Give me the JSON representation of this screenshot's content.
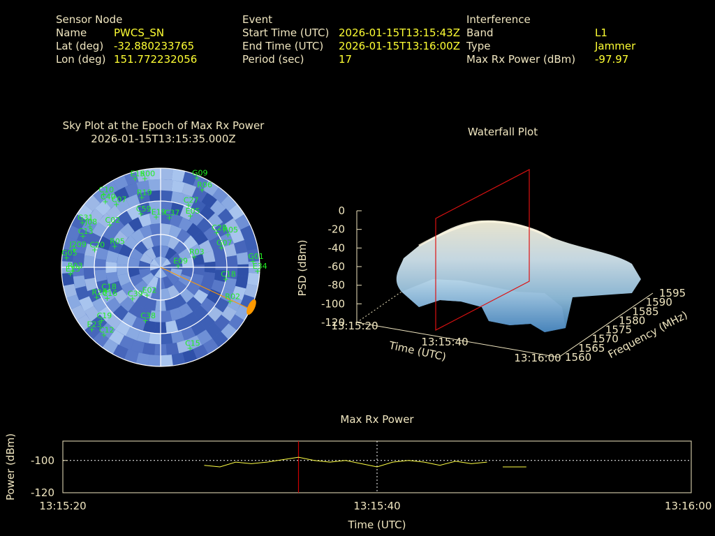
{
  "header": {
    "sensor": {
      "heading": "Sensor Node",
      "name_label": "Name",
      "name_value": "PWCS_SN",
      "lat_label": "Lat (deg)",
      "lat_value": "-32.880233765",
      "lon_label": "Lon (deg)",
      "lon_value": "151.772232056"
    },
    "event": {
      "heading": "Event",
      "start_label": "Start Time (UTC)",
      "start_value": "2026-01-15T13:15:43Z",
      "end_label": "End Time (UTC)",
      "end_value": "2026-01-15T13:16:00Z",
      "period_label": "Period (sec)",
      "period_value": "17"
    },
    "interference": {
      "heading": "Interference",
      "band_label": "Band",
      "band_value": "L1",
      "type_label": "Type",
      "type_value": "Jammer",
      "power_label": "Max Rx Power (dBm)",
      "power_value": "-97.97"
    }
  },
  "colors": {
    "label": "#f0e6c0",
    "value": "#ffff33",
    "satellite": "#22ee22",
    "marker": "#cc0000",
    "power_line": "#ffff44",
    "jammer": "#ff9900"
  },
  "chart_data": [
    {
      "type": "scatter",
      "title": "Sky Plot at the Epoch of Max Rx Power",
      "subtitle": "2026-01-15T13:15:35.000Z",
      "rings_elevation_deg": [
        0,
        30,
        60
      ],
      "jammer_azimuth_deg": 115,
      "satellites": [
        {
          "id": "G09",
          "az": 22,
          "el": 2
        },
        {
          "id": "R06",
          "az": 28,
          "el": 10
        },
        {
          "id": "E15",
          "az": 344,
          "el": 6
        },
        {
          "id": "R00",
          "az": 350,
          "el": 8
        },
        {
          "id": "C10",
          "az": 322,
          "el": 6
        },
        {
          "id": "C40",
          "az": 320,
          "el": 12
        },
        {
          "id": "C07",
          "az": 325,
          "el": 20
        },
        {
          "id": "R19",
          "az": 345,
          "el": 24
        },
        {
          "id": "C27",
          "az": 24,
          "el": 28
        },
        {
          "id": "E05",
          "az": 30,
          "el": 36
        },
        {
          "id": "G31",
          "az": 300,
          "el": 8
        },
        {
          "id": "J08",
          "az": 300,
          "el": 16
        },
        {
          "id": "C13",
          "az": 292,
          "el": 14
        },
        {
          "id": "C02",
          "az": 310,
          "el": 30
        },
        {
          "id": "C59",
          "az": 340,
          "el": 38
        },
        {
          "id": "E19",
          "az": 355,
          "el": 44
        },
        {
          "id": "C37",
          "az": 10,
          "el": 44
        },
        {
          "id": "J209",
          "az": 282,
          "el": 10
        },
        {
          "id": "C20",
          "az": 285,
          "el": 28
        },
        {
          "id": "R05",
          "az": 295,
          "el": 44
        },
        {
          "id": "G05",
          "az": 276,
          "el": 4
        },
        {
          "id": "R03",
          "az": 268,
          "el": 10
        },
        {
          "id": "E13",
          "az": 266,
          "el": 8
        },
        {
          "id": "C28",
          "az": 58,
          "el": 30
        },
        {
          "id": "R05",
          "az": 64,
          "el": 22
        },
        {
          "id": "G07",
          "az": 72,
          "el": 32
        },
        {
          "id": "R03",
          "az": 72,
          "el": 58
        },
        {
          "id": "E09",
          "az": 84,
          "el": 74
        },
        {
          "id": "G01",
          "az": 86,
          "el": 6
        },
        {
          "id": "E34",
          "az": 92,
          "el": 2
        },
        {
          "id": "E02",
          "az": 206,
          "el": 62
        },
        {
          "id": "C18",
          "az": 100,
          "el": 30
        },
        {
          "id": "R02",
          "az": 116,
          "el": 20
        },
        {
          "id": "C18",
          "az": 246,
          "el": 36
        },
        {
          "id": "C39",
          "az": 222,
          "el": 52
        },
        {
          "id": "R28",
          "az": 245,
          "el": 26
        },
        {
          "id": "C16",
          "az": 240,
          "el": 34
        },
        {
          "id": "C19",
          "az": 228,
          "el": 18
        },
        {
          "id": "C12",
          "az": 220,
          "el": 10
        },
        {
          "id": "E23",
          "az": 228,
          "el": 6
        },
        {
          "id": "C15",
          "az": 160,
          "el": 12
        },
        {
          "id": "C38",
          "az": 196,
          "el": 40
        }
      ]
    },
    {
      "type": "area",
      "title": "Waterfall Plot",
      "xlabel": "Time (UTC)",
      "ylabel": "Frequency (MHz)",
      "zlabel": "PSD (dBm)",
      "time_ticks": [
        "13:15:20",
        "13:15:40",
        "13:16:00"
      ],
      "freq_ticks": [
        1560,
        1565,
        1570,
        1575,
        1580,
        1585,
        1590,
        1595
      ],
      "psd_ticks": [
        0,
        -20,
        -40,
        -60,
        -80,
        -100,
        -120
      ],
      "zlim": [
        -120,
        0
      ],
      "max_power_epoch": "13:15:35",
      "peak_psd_dbm": -10,
      "floor_psd_dbm": -105
    },
    {
      "type": "line",
      "title": "Max Rx Power",
      "xlabel": "Time (UTC)",
      "ylabel": "Power (dBm)",
      "x_ticks": [
        "13:15:20",
        "13:15:40",
        "13:16:00"
      ],
      "y_ticks": [
        -100,
        -120
      ],
      "xlim_sec": [
        0,
        40
      ],
      "ylim": [
        -120,
        -88
      ],
      "marker_sec": 15,
      "series": [
        {
          "segments": [
            [
              [
                9,
                -103
              ],
              [
                10,
                -104
              ],
              [
                11,
                -101
              ],
              [
                12,
                -102
              ],
              [
                13,
                -101
              ],
              [
                14,
                -99.5
              ],
              [
                15,
                -98
              ],
              [
                16,
                -100
              ],
              [
                17,
                -101
              ],
              [
                18,
                -100
              ],
              [
                19,
                -102
              ],
              [
                20,
                -104
              ],
              [
                21,
                -101
              ],
              [
                22,
                -100
              ],
              [
                23,
                -101
              ],
              [
                24,
                -103
              ],
              [
                25,
                -100.5
              ],
              [
                26,
                -102
              ],
              [
                27,
                -101
              ]
            ],
            [
              [
                28,
                -104
              ],
              [
                29.5,
                -104
              ]
            ]
          ]
        }
      ]
    }
  ]
}
